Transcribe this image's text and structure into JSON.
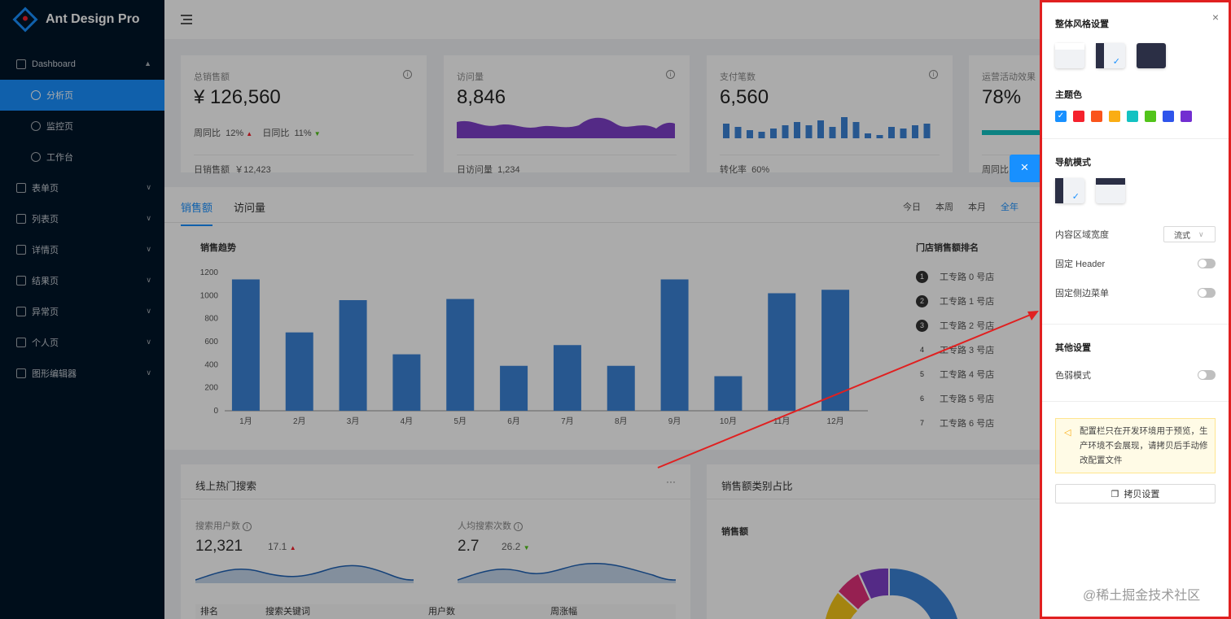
{
  "app": {
    "title": "Ant Design Pro"
  },
  "sidebar": {
    "items": [
      {
        "label": "Dashboard",
        "arrow": "▲",
        "active": false
      },
      {
        "label": "分析页",
        "sub": true,
        "active": true
      },
      {
        "label": "监控页",
        "sub": true
      },
      {
        "label": "工作台",
        "sub": true
      },
      {
        "label": "表单页",
        "arrow": "∨"
      },
      {
        "label": "列表页",
        "arrow": "∨"
      },
      {
        "label": "详情页",
        "arrow": "∨"
      },
      {
        "label": "结果页",
        "arrow": "∨"
      },
      {
        "label": "异常页",
        "arrow": "∨"
      },
      {
        "label": "个人页",
        "arrow": "∨"
      },
      {
        "label": "图形编辑器",
        "arrow": "∨"
      }
    ]
  },
  "stats": [
    {
      "title": "总销售额",
      "value": "¥ 126,560",
      "mid1_label": "周同比",
      "mid1_val": "12%",
      "mid2_label": "日同比",
      "mid2_val": "11%",
      "foot_label": "日销售额",
      "foot_val": "￥12,423"
    },
    {
      "title": "访问量",
      "value": "8,846",
      "foot_label": "日访问量",
      "foot_val": "1,234"
    },
    {
      "title": "支付笔数",
      "value": "6,560",
      "foot_label": "转化率",
      "foot_val": "60%"
    },
    {
      "title": "运营活动效果",
      "value": "78%",
      "foot_label": "周同比",
      "foot_val": ""
    }
  ],
  "sales": {
    "tabs": [
      "销售额",
      "访问量"
    ],
    "ranges": [
      "今日",
      "本周",
      "本月",
      "全年"
    ],
    "chart_title": "销售趋势",
    "rank_title": "门店销售额排名",
    "rank": [
      "工专路 0 号店",
      "工专路 1 号店",
      "工专路 2 号店",
      "工专路 3 号店",
      "工专路 4 号店",
      "工专路 5 号店",
      "工专路 6 号店"
    ]
  },
  "chart_data": {
    "type": "bar",
    "title": "销售趋势",
    "categories": [
      "1月",
      "2月",
      "3月",
      "4月",
      "5月",
      "6月",
      "7月",
      "8月",
      "9月",
      "10月",
      "11月",
      "12月"
    ],
    "values": [
      1140,
      680,
      960,
      490,
      970,
      390,
      570,
      390,
      1140,
      300,
      1020,
      1050
    ],
    "ylim": [
      0,
      1200
    ],
    "yticks": [
      0,
      200,
      400,
      600,
      800,
      1000,
      1200
    ],
    "color": "#3b82d6"
  },
  "search": {
    "title": "线上热门搜索",
    "more": "···",
    "users_label": "搜索用户数",
    "users_val": "12,321",
    "users_change": "17.1",
    "avg_label": "人均搜索次数",
    "avg_val": "2.7",
    "avg_change": "26.2",
    "cols": [
      "排名",
      "搜索关键词",
      "用户数",
      "周涨幅"
    ]
  },
  "category": {
    "title": "销售额类别占比",
    "sub": "销售额"
  },
  "drawer": {
    "close": "×",
    "style_title": "整体风格设置",
    "color_title": "主题色",
    "colors": [
      "#1890ff",
      "#f5222d",
      "#fa541c",
      "#faad14",
      "#13c2c2",
      "#52c41a",
      "#2f54eb",
      "#722ed1"
    ],
    "nav_title": "导航模式",
    "width_label": "内容区域宽度",
    "width_val": "流式",
    "fixed_header": "固定 Header",
    "fixed_sider": "固定侧边菜单",
    "other_title": "其他设置",
    "weak": "色弱模式",
    "alert": "配置栏只在开发环境用于预览，生产环境不会展现，请拷贝后手动修改配置文件",
    "copy": "拷贝设置"
  },
  "float_close": "×",
  "watermark": "@稀土掘金技术社区"
}
